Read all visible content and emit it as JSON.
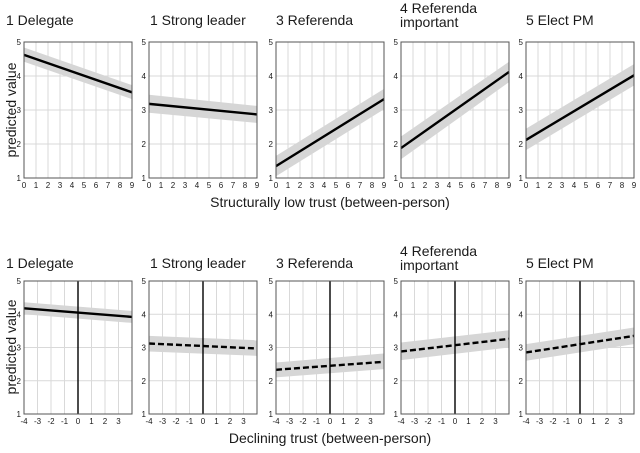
{
  "chart_data": [
    {
      "type": "line",
      "row": "structural",
      "xlabel": "Structurally low trust (between-person)",
      "ylabel": "predicted value",
      "xlim": [
        0,
        9
      ],
      "ylim": [
        1,
        5
      ],
      "xticks": [
        0,
        1,
        2,
        3,
        4,
        5,
        6,
        7,
        8,
        9
      ],
      "yticks": [
        1,
        2,
        3,
        4,
        5
      ],
      "zero_line": false,
      "panels": [
        {
          "title": [
            "1 Delegate"
          ],
          "x": [
            0,
            9
          ],
          "y": [
            4.62,
            3.52
          ],
          "ci_lower": [
            4.42,
            3.32
          ],
          "ci_upper": [
            4.84,
            3.73
          ],
          "dashed": false
        },
        {
          "title": [
            "1 Strong leader"
          ],
          "x": [
            0,
            9
          ],
          "y": [
            3.18,
            2.87
          ],
          "ci_lower": [
            2.92,
            2.62
          ],
          "ci_upper": [
            3.45,
            3.12
          ],
          "dashed": false
        },
        {
          "title": [
            "3 Referenda"
          ],
          "x": [
            0,
            9
          ],
          "y": [
            1.35,
            3.32
          ],
          "ci_lower": [
            1.05,
            3.02
          ],
          "ci_upper": [
            1.65,
            3.62
          ],
          "dashed": false
        },
        {
          "title": [
            "4 Referenda",
            "important"
          ],
          "x": [
            0,
            9
          ],
          "y": [
            1.88,
            4.12
          ],
          "ci_lower": [
            1.55,
            3.82
          ],
          "ci_upper": [
            2.22,
            4.42
          ],
          "dashed": false
        },
        {
          "title": [
            "5 Elect PM"
          ],
          "x": [
            0,
            9
          ],
          "y": [
            2.12,
            4.02
          ],
          "ci_lower": [
            1.82,
            3.72
          ],
          "ci_upper": [
            2.45,
            4.35
          ],
          "dashed": false
        }
      ]
    },
    {
      "type": "line",
      "row": "declining",
      "xlabel": "Declining trust (between-person)",
      "ylabel": "predicted value",
      "xlim": [
        -4,
        4
      ],
      "ylim": [
        1,
        5
      ],
      "xticks": [
        -4,
        -3,
        -2,
        -1,
        0,
        1,
        2,
        3
      ],
      "yticks": [
        1,
        2,
        3,
        4,
        5
      ],
      "zero_line": true,
      "panels": [
        {
          "title": [
            "1 Delegate"
          ],
          "x": [
            -4,
            4
          ],
          "y": [
            4.18,
            3.92
          ],
          "ci_lower": [
            4.0,
            3.74
          ],
          "ci_upper": [
            4.36,
            4.1
          ],
          "dashed": false
        },
        {
          "title": [
            "1 Strong leader"
          ],
          "x": [
            -4,
            4
          ],
          "y": [
            3.12,
            2.97
          ],
          "ci_lower": [
            2.88,
            2.75
          ],
          "ci_upper": [
            3.35,
            3.22
          ],
          "dashed": true
        },
        {
          "title": [
            "3 Referenda"
          ],
          "x": [
            -4,
            4
          ],
          "y": [
            2.33,
            2.57
          ],
          "ci_lower": [
            2.1,
            2.35
          ],
          "ci_upper": [
            2.55,
            2.82
          ],
          "dashed": true
        },
        {
          "title": [
            "4 Referenda",
            "important"
          ],
          "x": [
            -4,
            4
          ],
          "y": [
            2.88,
            3.26
          ],
          "ci_lower": [
            2.62,
            3.0
          ],
          "ci_upper": [
            3.15,
            3.52
          ],
          "dashed": true
        },
        {
          "title": [
            "5 Elect PM"
          ],
          "x": [
            -4,
            4
          ],
          "y": [
            2.85,
            3.35
          ],
          "ci_lower": [
            2.6,
            3.1
          ],
          "ci_upper": [
            3.1,
            3.6
          ],
          "dashed": true
        }
      ]
    }
  ]
}
